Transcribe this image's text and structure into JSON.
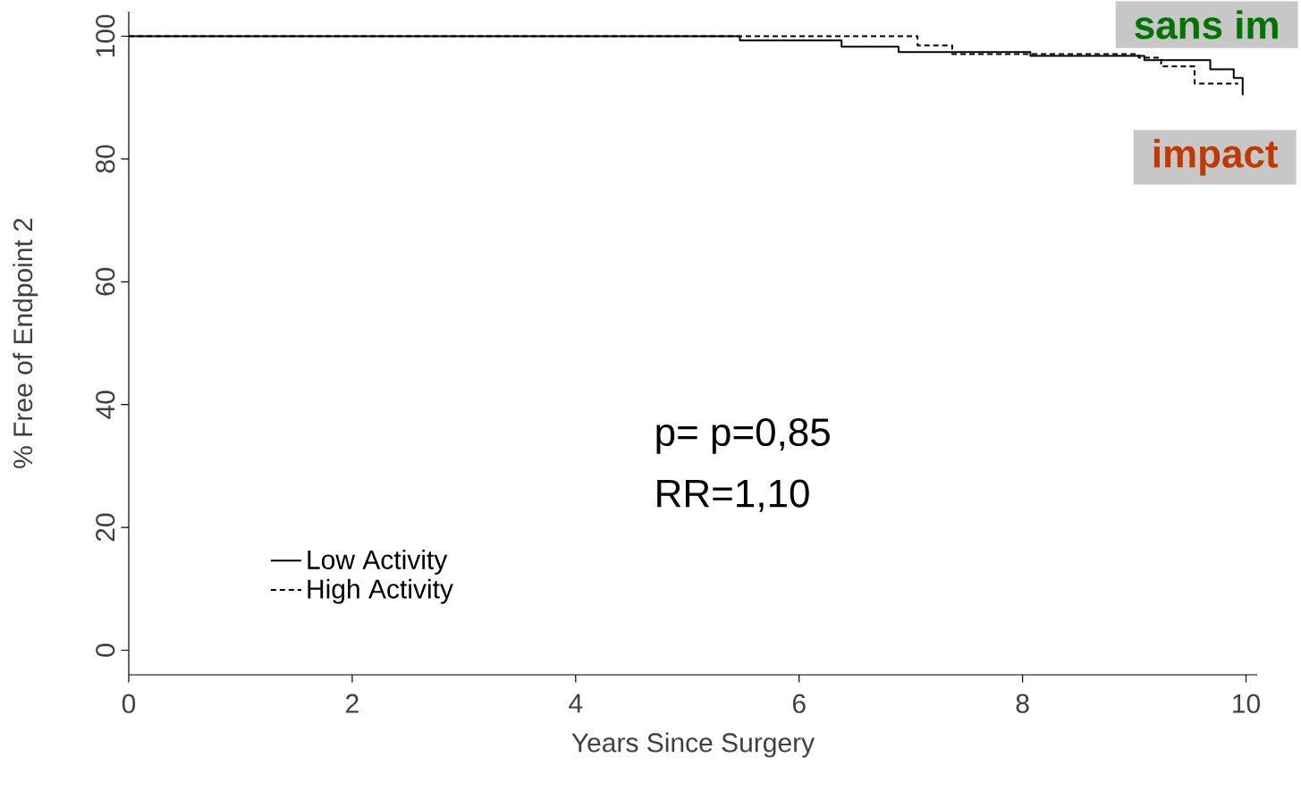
{
  "chart_data": {
    "type": "step",
    "xlabel": "Years Since Surgery",
    "ylabel": "% Free of Endpoint 2",
    "series": [
      {
        "name": "Low Activity",
        "color": "#000000",
        "line_style": "solid",
        "x": [
          0,
          5.47,
          6.38,
          6.89,
          8.07,
          9.09,
          9.68,
          9.89,
          9.97
        ],
        "values": [
          100,
          99.3,
          98.3,
          97.4,
          96.8,
          96.1,
          94.6,
          93.2,
          90.4
        ]
      },
      {
        "name": "High Activity",
        "color": "#000000",
        "line_style": "dashed",
        "x": [
          0,
          7.06,
          7.37,
          9.04,
          9.24,
          9.54,
          9.93
        ],
        "values": [
          100,
          98.5,
          97.1,
          96.5,
          95.1,
          92.3,
          92.3
        ]
      }
    ],
    "xlim": [
      0,
      10.1
    ],
    "ylim": [
      -4,
      104
    ],
    "xticks": [
      0,
      2,
      4,
      6,
      8,
      10
    ],
    "yticks": [
      0,
      20,
      40,
      60,
      80,
      100
    ],
    "grid": false,
    "legend": "bottom left",
    "marker": "none",
    "annotations": [
      "p= p=0,85",
      "RR=1,10",
      "sans im",
      "impact"
    ]
  }
}
